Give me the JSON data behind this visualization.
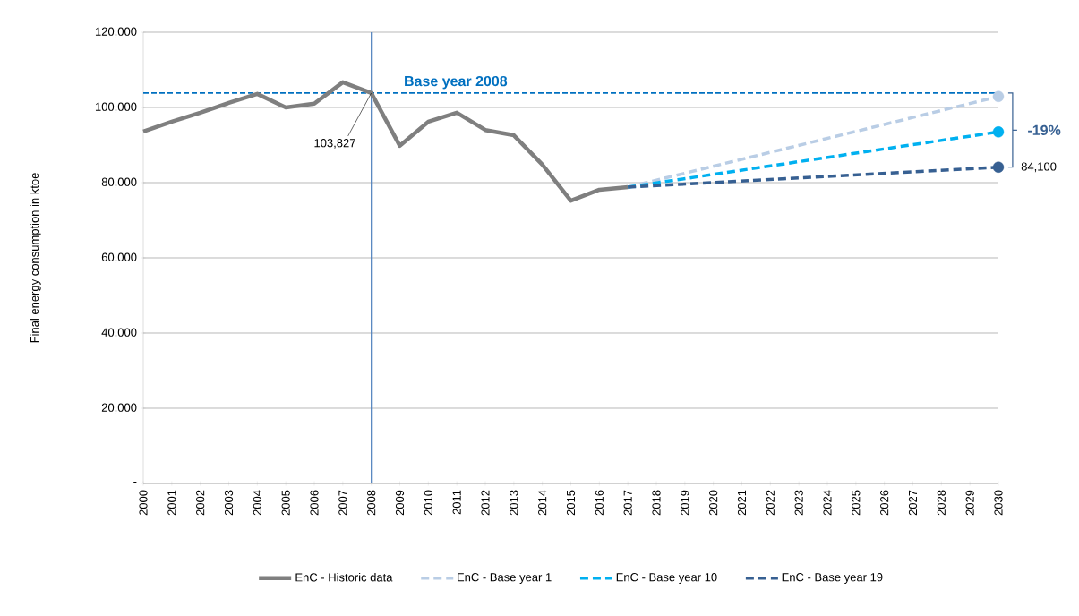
{
  "chart_data": {
    "type": "line",
    "ylabel": "Final energy consumption  in ktoe",
    "categories": [
      "2000",
      "2001",
      "2002",
      "2003",
      "2004",
      "2005",
      "2006",
      "2007",
      "2008",
      "2009",
      "2010",
      "2011",
      "2012",
      "2013",
      "2014",
      "2015",
      "2016",
      "2017",
      "2018",
      "2019",
      "2020",
      "2021",
      "2022",
      "2023",
      "2024",
      "2025",
      "2026",
      "2027",
      "2028",
      "2029",
      "2030"
    ],
    "series": [
      {
        "name": "EnC - Historic data",
        "color": "#7f7f7f",
        "line_style": "solid",
        "marker": "none",
        "values": [
          93600,
          96200,
          98600,
          101200,
          103600,
          100000,
          101000,
          106700,
          103827,
          89800,
          96200,
          98600,
          94000,
          92600,
          84800,
          75200,
          78100,
          78800,
          null,
          null,
          null,
          null,
          null,
          null,
          null,
          null,
          null,
          null,
          null,
          null,
          null
        ]
      },
      {
        "name": "EnC - Base year 1",
        "color": "#b9cde5",
        "line_style": "dashed",
        "marker": "circle",
        "values": [
          null,
          null,
          null,
          null,
          null,
          null,
          null,
          null,
          null,
          null,
          null,
          null,
          null,
          null,
          null,
          null,
          null,
          78800,
          null,
          null,
          null,
          null,
          null,
          null,
          null,
          null,
          null,
          null,
          null,
          null,
          102900
        ]
      },
      {
        "name": "EnC - Base year 10",
        "color": "#00b0f0",
        "line_style": "dashed",
        "marker": "circle",
        "values": [
          null,
          null,
          null,
          null,
          null,
          null,
          null,
          null,
          null,
          null,
          null,
          null,
          null,
          null,
          null,
          null,
          null,
          78800,
          null,
          null,
          null,
          null,
          null,
          null,
          null,
          null,
          null,
          null,
          null,
          null,
          93500
        ]
      },
      {
        "name": "EnC - Base year 19",
        "color": "#376092",
        "line_style": "dashed",
        "marker": "circle",
        "values": [
          null,
          null,
          null,
          null,
          null,
          null,
          null,
          null,
          null,
          null,
          null,
          null,
          null,
          null,
          null,
          null,
          null,
          78800,
          null,
          null,
          null,
          null,
          null,
          null,
          null,
          null,
          null,
          null,
          null,
          null,
          84100
        ]
      }
    ],
    "ylim": [
      0,
      120000
    ],
    "yticks": [
      {
        "value": 0,
        "label": "-"
      },
      {
        "value": 20000,
        "label": "20,000"
      },
      {
        "value": 40000,
        "label": "40,000"
      },
      {
        "value": 60000,
        "label": "60,000"
      },
      {
        "value": 80000,
        "label": "80,000"
      },
      {
        "value": 100000,
        "label": "100,000"
      },
      {
        "value": 120000,
        "label": "120,000"
      }
    ],
    "grid": "y",
    "legend": "bottom",
    "ref_lines": [
      {
        "axis": "x",
        "value": "2008",
        "color": "#4f81bd",
        "line_style": "solid"
      },
      {
        "axis": "y",
        "value": 103827,
        "label": "Base year 2008",
        "color": "#0070c0",
        "line_style": "dashed"
      }
    ],
    "annotations": [
      {
        "text": "103,827",
        "x": "2008",
        "y": 103827
      },
      {
        "text": "84,100",
        "x": "2030",
        "y": 84100
      },
      "-19%"
    ]
  }
}
